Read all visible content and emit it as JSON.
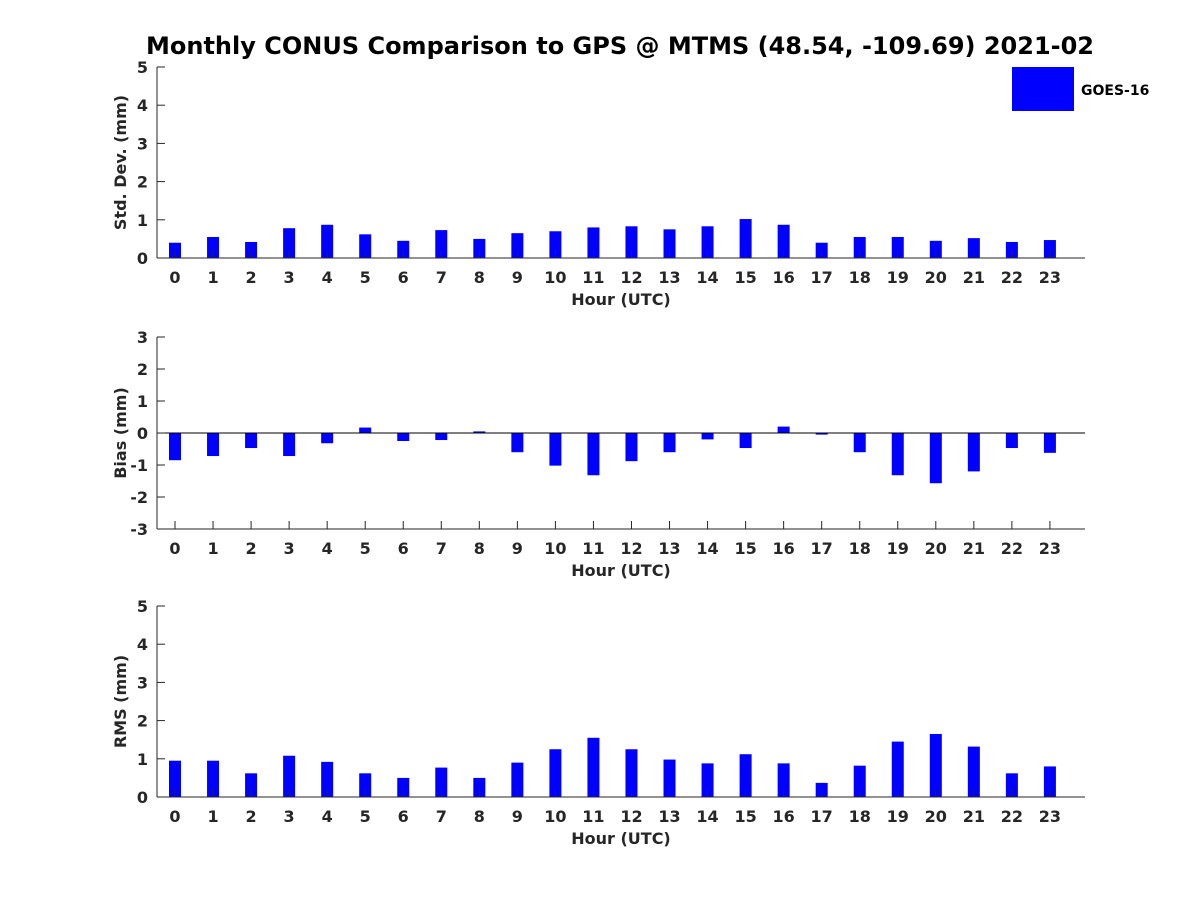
{
  "title": "Monthly CONUS Comparison to GPS @ MTMS (48.54, -109.69) 2021-02",
  "colors": {
    "bar": "#0000ff",
    "axis": "#262626",
    "text": "#262626"
  },
  "legend": {
    "label": "GOES-16",
    "placement": "top-right"
  },
  "chart_data": [
    {
      "type": "bar",
      "title": "",
      "xlabel": "Hour (UTC)",
      "ylabel": "Std. Dev. (mm)",
      "categories": [
        "0",
        "1",
        "2",
        "3",
        "4",
        "5",
        "6",
        "7",
        "8",
        "9",
        "10",
        "11",
        "12",
        "13",
        "14",
        "15",
        "16",
        "17",
        "18",
        "19",
        "20",
        "21",
        "22",
        "23"
      ],
      "series": [
        {
          "name": "GOES-16",
          "values": [
            0.4,
            0.55,
            0.42,
            0.78,
            0.87,
            0.62,
            0.45,
            0.73,
            0.5,
            0.65,
            0.7,
            0.8,
            0.83,
            0.75,
            0.83,
            1.02,
            0.87,
            0.4,
            0.55,
            0.55,
            0.45,
            0.52,
            0.42,
            0.47
          ]
        }
      ],
      "ylim": [
        0,
        5
      ],
      "yticks": [
        0,
        1,
        2,
        3,
        4,
        5
      ],
      "grid": false
    },
    {
      "type": "bar",
      "title": "",
      "xlabel": "Hour (UTC)",
      "ylabel": "Bias (mm)",
      "categories": [
        "0",
        "1",
        "2",
        "3",
        "4",
        "5",
        "6",
        "7",
        "8",
        "9",
        "10",
        "11",
        "12",
        "13",
        "14",
        "15",
        "16",
        "17",
        "18",
        "19",
        "20",
        "21",
        "22",
        "23"
      ],
      "series": [
        {
          "name": "GOES-16",
          "values": [
            -0.85,
            -0.72,
            -0.47,
            -0.72,
            -0.32,
            0.17,
            -0.25,
            -0.22,
            0.05,
            -0.6,
            -1.02,
            -1.32,
            -0.88,
            -0.6,
            -0.2,
            -0.47,
            0.2,
            -0.05,
            -0.6,
            -1.32,
            -1.57,
            -1.2,
            -0.47,
            -0.62
          ]
        }
      ],
      "ylim": [
        -3,
        3
      ],
      "yticks": [
        -3,
        -2,
        -1,
        0,
        1,
        2,
        3
      ],
      "grid": false
    },
    {
      "type": "bar",
      "title": "",
      "xlabel": "Hour (UTC)",
      "ylabel": "RMS (mm)",
      "categories": [
        "0",
        "1",
        "2",
        "3",
        "4",
        "5",
        "6",
        "7",
        "8",
        "9",
        "10",
        "11",
        "12",
        "13",
        "14",
        "15",
        "16",
        "17",
        "18",
        "19",
        "20",
        "21",
        "22",
        "23"
      ],
      "series": [
        {
          "name": "GOES-16",
          "values": [
            0.95,
            0.95,
            0.62,
            1.08,
            0.92,
            0.62,
            0.5,
            0.77,
            0.5,
            0.9,
            1.25,
            1.55,
            1.25,
            0.98,
            0.88,
            1.12,
            0.88,
            0.37,
            0.82,
            1.45,
            1.65,
            1.32,
            0.62,
            0.8
          ]
        }
      ],
      "ylim": [
        0,
        5
      ],
      "yticks": [
        0,
        1,
        2,
        3,
        4,
        5
      ],
      "grid": false
    }
  ]
}
